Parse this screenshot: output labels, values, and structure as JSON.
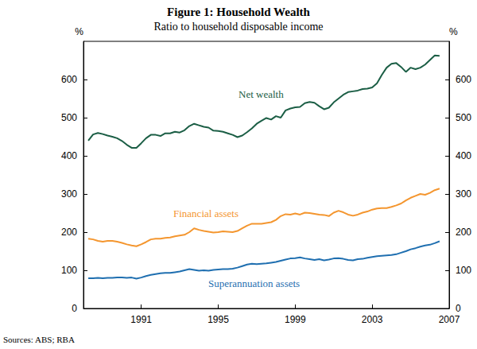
{
  "chart_data": {
    "type": "line",
    "title": "Figure 1: Household Wealth",
    "subtitle": "Ratio to household disposable income",
    "source": "Sources: ABS; RBA",
    "y_label": "%",
    "y2_label": "%",
    "x": [
      1988.25,
      1988.5,
      1988.75,
      1989,
      1989.25,
      1989.5,
      1989.75,
      1990,
      1990.25,
      1990.5,
      1990.75,
      1991,
      1991.25,
      1991.5,
      1991.75,
      1992,
      1992.25,
      1992.5,
      1992.75,
      1993,
      1993.25,
      1993.5,
      1993.75,
      1994,
      1994.25,
      1994.5,
      1994.75,
      1995,
      1995.25,
      1995.5,
      1995.75,
      1996,
      1996.25,
      1996.5,
      1996.75,
      1997,
      1997.25,
      1997.5,
      1997.75,
      1998,
      1998.25,
      1998.5,
      1998.75,
      1999,
      1999.25,
      1999.5,
      1999.75,
      2000,
      2000.25,
      2000.5,
      2000.75,
      2001,
      2001.25,
      2001.5,
      2001.75,
      2002,
      2002.25,
      2002.5,
      2002.75,
      2003,
      2003.25,
      2003.5,
      2003.75,
      2004,
      2004.25,
      2004.5,
      2004.75,
      2005,
      2005.25,
      2005.5,
      2005.75,
      2006,
      2006.25,
      2006.5
    ],
    "xlim": [
      1988,
      2007
    ],
    "xticks": [
      1991,
      1995,
      1999,
      2003,
      2007
    ],
    "ylim": [
      0,
      700
    ],
    "yticks": [
      0,
      100,
      200,
      300,
      400,
      500,
      600
    ],
    "y2lim": [
      0,
      700
    ],
    "y2ticks": [
      0,
      100,
      200,
      300,
      400,
      500,
      600
    ],
    "grid": false,
    "series": [
      {
        "name": "Net wealth",
        "color": "#1b5e45",
        "values": [
          440,
          456,
          460,
          457,
          453,
          450,
          446,
          439,
          429,
          421,
          421,
          433,
          446,
          455,
          455,
          452,
          459,
          459,
          463,
          461,
          467,
          478,
          484,
          480,
          476,
          474,
          466,
          465,
          463,
          459,
          455,
          449,
          453,
          462,
          472,
          484,
          492,
          499,
          495,
          504,
          500,
          519,
          524,
          527,
          528,
          538,
          541,
          539,
          530,
          522,
          526,
          540,
          550,
          560,
          567,
          569,
          571,
          575,
          576,
          579,
          590,
          612,
          631,
          641,
          643,
          633,
          620,
          631,
          627,
          631,
          639,
          651,
          663,
          662
        ]
      },
      {
        "name": "Financial assets",
        "color": "#f4962f",
        "values": [
          183,
          181,
          177,
          175,
          177,
          177,
          175,
          172,
          168,
          165,
          163,
          168,
          174,
          181,
          183,
          183,
          185,
          186,
          189,
          191,
          193,
          200,
          210,
          206,
          203,
          201,
          199,
          200,
          202,
          201,
          200,
          203,
          210,
          217,
          222,
          222,
          222,
          224,
          226,
          232,
          242,
          247,
          246,
          249,
          246,
          251,
          250,
          248,
          246,
          245,
          242,
          251,
          256,
          252,
          246,
          243,
          246,
          251,
          254,
          259,
          262,
          263,
          263,
          266,
          270,
          275,
          283,
          290,
          295,
          300,
          298,
          303,
          310,
          314
        ]
      },
      {
        "name": "Superannuation assets",
        "color": "#1f6fb0",
        "values": [
          79,
          79,
          80,
          79,
          80,
          80,
          81,
          81,
          80,
          81,
          78,
          81,
          85,
          88,
          90,
          92,
          93,
          93,
          95,
          97,
          100,
          103,
          101,
          99,
          100,
          99,
          101,
          102,
          103,
          103,
          104,
          107,
          111,
          115,
          117,
          116,
          117,
          118,
          120,
          122,
          125,
          128,
          131,
          132,
          134,
          131,
          129,
          127,
          129,
          126,
          128,
          131,
          132,
          130,
          127,
          126,
          129,
          130,
          133,
          135,
          137,
          138,
          139,
          140,
          142,
          146,
          150,
          155,
          158,
          162,
          165,
          167,
          171,
          176
        ]
      }
    ]
  }
}
